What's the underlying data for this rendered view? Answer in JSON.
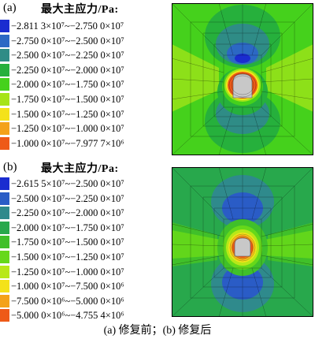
{
  "panels": [
    {
      "label": "(a)",
      "legend_title": "最大主应力/Pa:",
      "legend": [
        {
          "range": "−2.811 3×10⁷~−2.750 0×10⁷",
          "color": "#1a2cd0"
        },
        {
          "range": "−2.750 0×10⁷~−2.500 0×10⁷",
          "color": "#2c68c4"
        },
        {
          "range": "−2.500 0×10⁷~−2.250 0×10⁷",
          "color": "#2f8c86"
        },
        {
          "range": "−2.250 0×10⁷~−2.000 0×10⁷",
          "color": "#26b03c"
        },
        {
          "range": "−2.000 0×10⁷~−1.750 0×10⁷",
          "color": "#45d11c"
        },
        {
          "range": "−1.750 0×10⁷~−1.500 0×10⁷",
          "color": "#a6e418"
        },
        {
          "range": "−1.500 0×10⁷~−1.250 0×10⁷",
          "color": "#f4e21a"
        },
        {
          "range": "−1.250 0×10⁷~−1.000 0×10⁷",
          "color": "#f4a21a"
        },
        {
          "range": "−1.000 0×10⁷~−7.977 7×10⁶",
          "color": "#ee5a18"
        }
      ]
    },
    {
      "label": "(b)",
      "legend_title": "最大主应力/Pa:",
      "legend": [
        {
          "range": "−2.615 5×10⁷~−2.500 0×10⁷",
          "color": "#1a2cd0"
        },
        {
          "range": "−2.500 0×10⁷~−2.250 0×10⁷",
          "color": "#2a5cc6"
        },
        {
          "range": "−2.250 0×10⁷~−2.000 0×10⁷",
          "color": "#2f8a8c"
        },
        {
          "range": "−2.000 0×10⁷~−1.750 0×10⁷",
          "color": "#28a84c"
        },
        {
          "range": "−1.750 0×10⁷~−1.500 0×10⁷",
          "color": "#40c02a"
        },
        {
          "range": "−1.500 0×10⁷~−1.250 0×10⁷",
          "color": "#66d81a"
        },
        {
          "range": "−1.250 0×10⁷~−1.000 0×10⁷",
          "color": "#b8e818"
        },
        {
          "range": "−1.000 0×10⁷~−7.500 0×10⁶",
          "color": "#f4e21a"
        },
        {
          "range": "−7.500 0×10⁶~−5.000 0×10⁶",
          "color": "#f4a21a"
        },
        {
          "range": "−5.000 0×10⁶~−4.755 4×10⁶",
          "color": "#ee5a18"
        }
      ]
    }
  ],
  "caption": "(a)  修复前；(b)  修复后"
}
